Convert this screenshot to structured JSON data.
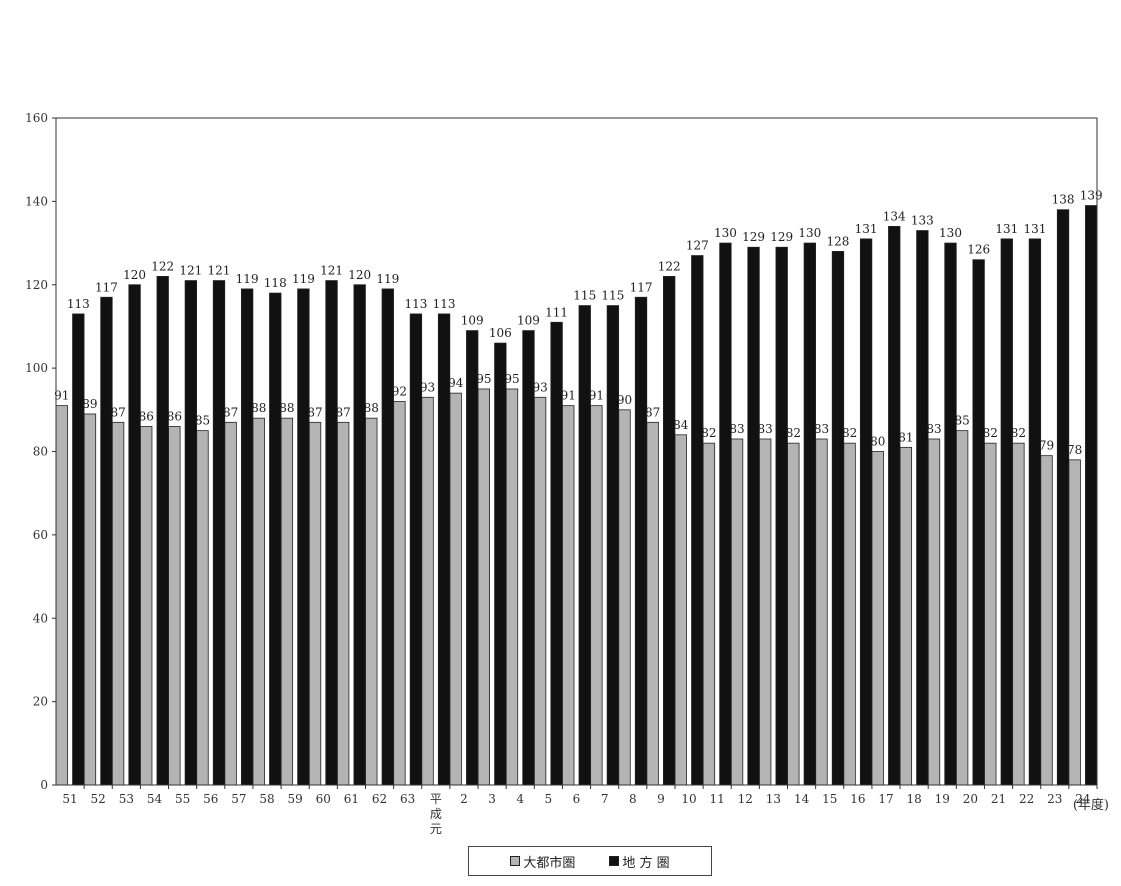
{
  "chart_data": {
    "type": "bar",
    "categories": [
      "51",
      "52",
      "53",
      "54",
      "55",
      "56",
      "57",
      "58",
      "59",
      "60",
      "61",
      "62",
      "63",
      "平成元",
      "2",
      "3",
      "4",
      "5",
      "6",
      "7",
      "8",
      "9",
      "10",
      "11",
      "12",
      "13",
      "14",
      "15",
      "16",
      "17",
      "18",
      "19",
      "20",
      "21",
      "22",
      "23",
      "24"
    ],
    "series": [
      {
        "name": "大都市圏",
        "color": "#b4b4b4",
        "values": [
          91,
          89,
          87,
          86,
          86,
          85,
          87,
          88,
          88,
          87,
          87,
          88,
          92,
          93,
          94,
          95,
          95,
          93,
          91,
          91,
          90,
          87,
          84,
          82,
          83,
          83,
          82,
          83,
          82,
          80,
          81,
          83,
          85,
          82,
          82,
          79,
          78
        ]
      },
      {
        "name": "地 方 圏",
        "color": "#111111",
        "values": [
          113,
          117,
          120,
          122,
          121,
          121,
          119,
          118,
          119,
          121,
          120,
          119,
          113,
          113,
          109,
          106,
          109,
          111,
          115,
          115,
          117,
          122,
          127,
          130,
          129,
          129,
          130,
          128,
          131,
          134,
          133,
          130,
          126,
          131,
          131,
          138,
          139
        ]
      }
    ],
    "ylim": [
      0,
      160
    ],
    "yticks": [
      0,
      20,
      40,
      60,
      80,
      100,
      120,
      140,
      160
    ],
    "x_unit": "(年度)",
    "grid": false,
    "legend_position": "bottom-center"
  }
}
